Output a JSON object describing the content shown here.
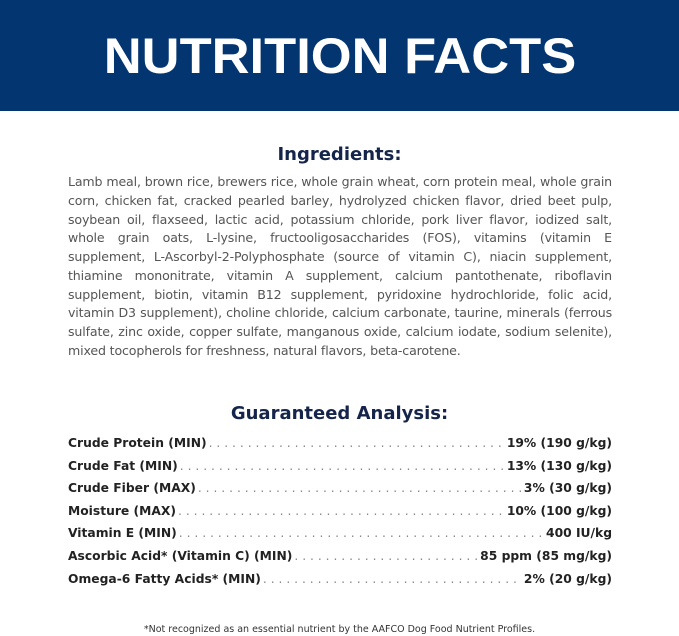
{
  "banner": {
    "title": "NUTRITION FACTS",
    "color": "#033570"
  },
  "ingredients": {
    "heading": "Ingredients:",
    "text": "Lamb meal, brown rice, brewers rice, whole grain wheat, corn protein meal, whole grain corn, chicken fat, cracked pearled barley, hydrolyzed chicken flavor, dried beet pulp, soybean oil, flaxseed, lactic acid, potassium chloride, pork liver flavor, iodized salt, whole grain oats, L-lysine, fructooligosaccharides (FOS), vitamins (vitamin E supplement, L-Ascorbyl-2-Polyphosphate (source of vitamin C), niacin supplement, thiamine mononitrate, vitamin A supplement, calcium pantothenate, riboflavin supplement, biotin, vitamin B12 supplement, pyridoxine hydrochloride, folic acid, vitamin D3 supplement), choline chloride, calcium carbonate, taurine, minerals (ferrous sulfate, zinc oxide, copper sulfate, manganous oxide, calcium iodate, sodium selenite), mixed tocopherols for freshness, natural flavors, beta-carotene."
  },
  "analysis": {
    "heading": "Guaranteed Analysis:",
    "rows": [
      {
        "label": "Crude Protein (MIN)",
        "value": "19% (190 g/kg)"
      },
      {
        "label": "Crude Fat (MIN)",
        "value": "13% (130 g/kg)"
      },
      {
        "label": "Crude Fiber (MAX)",
        "value": "3% (30 g/kg)"
      },
      {
        "label": "Moisture (MAX)",
        "value": "10% (100 g/kg)"
      },
      {
        "label": "Vitamin E (MIN)",
        "value": "400 IU/kg"
      },
      {
        "label": "Ascorbic Acid* (Vitamin C) (MIN)",
        "value": "85 ppm (85 mg/kg)"
      },
      {
        "label": "Omega-6 Fatty Acids* (MIN)",
        "value": "2% (20 g/kg)"
      }
    ]
  },
  "footnote": "*Not recognized as an essential nutrient by the AAFCO Dog Food Nutrient Profiles."
}
